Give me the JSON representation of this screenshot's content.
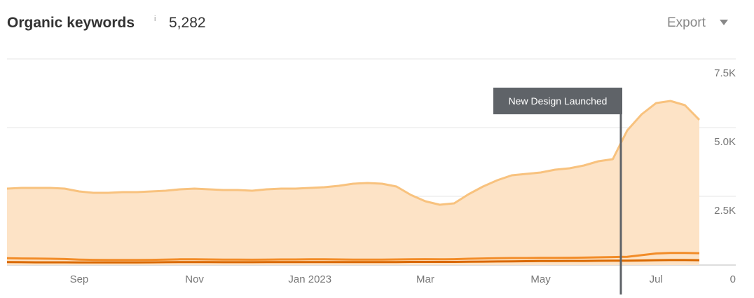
{
  "chart_data": {
    "type": "area-lines",
    "title": "Organic keywords",
    "info_icon": "i",
    "total": "5,282",
    "export": "Export",
    "annotation": "New Design Launched",
    "categories": [
      null,
      null,
      null,
      null,
      null,
      "Sep",
      null,
      null,
      null,
      null,
      null,
      null,
      null,
      "Nov",
      null,
      null,
      null,
      null,
      null,
      null,
      null,
      "Jan 2023",
      null,
      null,
      null,
      null,
      null,
      null,
      null,
      "Mar",
      null,
      null,
      null,
      null,
      null,
      null,
      null,
      "May",
      null,
      null,
      null,
      null,
      null,
      null,
      null,
      "Jul",
      null,
      null,
      null
    ],
    "series": [
      {
        "color": "#f8c27e",
        "fill": "#fde3c6",
        "values": [
          2780,
          2806,
          2806,
          2806,
          2780,
          2679,
          2628,
          2628,
          2653,
          2653,
          2679,
          2704,
          2755,
          2780,
          2755,
          2730,
          2730,
          2704,
          2755,
          2780,
          2780,
          2806,
          2832,
          2883,
          2959,
          2985,
          2959,
          2857,
          2551,
          2321,
          2194,
          2245,
          2577,
          2857,
          3087,
          3265,
          3316,
          3367,
          3469,
          3520,
          3622,
          3776,
          3852,
          4898,
          5485,
          5893,
          5969,
          5816,
          5282
        ]
      },
      {
        "color": "#f28c28",
        "values": [
          250,
          240,
          235,
          230,
          220,
          200,
          190,
          185,
          185,
          185,
          190,
          200,
          210,
          210,
          205,
          200,
          200,
          195,
          200,
          205,
          205,
          210,
          210,
          205,
          200,
          200,
          200,
          205,
          210,
          215,
          210,
          215,
          230,
          240,
          250,
          255,
          255,
          260,
          260,
          265,
          270,
          280,
          290,
          300,
          360,
          420,
          440,
          440,
          430
        ]
      },
      {
        "color": "#d96800",
        "values": [
          110,
          105,
          100,
          100,
          100,
          95,
          95,
          95,
          95,
          95,
          100,
          105,
          110,
          110,
          110,
          105,
          105,
          105,
          110,
          110,
          110,
          110,
          110,
          110,
          110,
          110,
          110,
          110,
          115,
          115,
          115,
          115,
          120,
          125,
          130,
          135,
          140,
          145,
          145,
          150,
          150,
          155,
          160,
          160,
          165,
          175,
          180,
          180,
          175
        ]
      }
    ],
    "ylim": [
      0,
      7500
    ],
    "yticks": [
      0,
      {
        "value": 2500,
        "label": "2.5K"
      },
      {
        "value": 5000,
        "label": "5.0K"
      },
      {
        "value": 7500,
        "label": "7.5K"
      }
    ],
    "grid": true
  }
}
